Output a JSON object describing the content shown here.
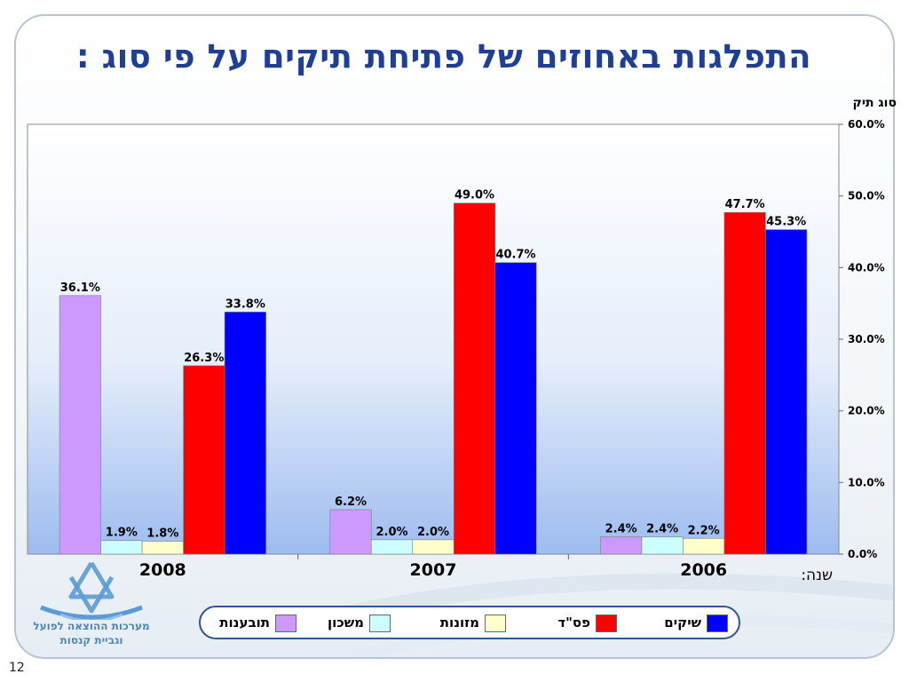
{
  "title": "התפלגות באחוזים של פתיחת תיקים על פי סוג :",
  "y_axis_caption": "סוג תיק",
  "year_caption": "שנה:",
  "slide_number": "12",
  "logo": {
    "line1": "מערכות ההוצאה לפועל",
    "line2": "וגביית קנסות",
    "icon": "star-of-david-logo-icon"
  },
  "chart_data": {
    "type": "bar",
    "categories": [
      "2008",
      "2007",
      "2006"
    ],
    "y_ticks": [
      "0.0%",
      "10.0%",
      "20.0%",
      "30.0%",
      "40.0%",
      "50.0%",
      "60.0%"
    ],
    "ylim": [
      0,
      60
    ],
    "y_axis_side": "right",
    "legend_position": "bottom",
    "grid": false,
    "series": [
      {
        "name": "תובענות",
        "color": "#cc99ff",
        "values": [
          36.1,
          6.2,
          2.4
        ],
        "labels": [
          "36.1%",
          "6.2%",
          "2.4%"
        ]
      },
      {
        "name": "משכון",
        "color": "#ccffff",
        "values": [
          1.9,
          2.0,
          2.4
        ],
        "labels": [
          "1.9%",
          "2.0%",
          "2.4%"
        ]
      },
      {
        "name": "מזונות",
        "color": "#ffffcc",
        "values": [
          1.8,
          2.0,
          2.2
        ],
        "labels": [
          "1.8%",
          "2.0%",
          "2.2%"
        ]
      },
      {
        "name": "פס\"ד",
        "color": "#ff0000",
        "values": [
          26.3,
          49.0,
          47.7
        ],
        "labels": [
          "26.3%",
          "49.0%",
          "47.7%"
        ]
      },
      {
        "name": "שיקים",
        "color": "#0000ff",
        "values": [
          33.8,
          40.7,
          45.3
        ],
        "labels": [
          "33.8%",
          "40.7%",
          "45.3%"
        ]
      }
    ]
  }
}
